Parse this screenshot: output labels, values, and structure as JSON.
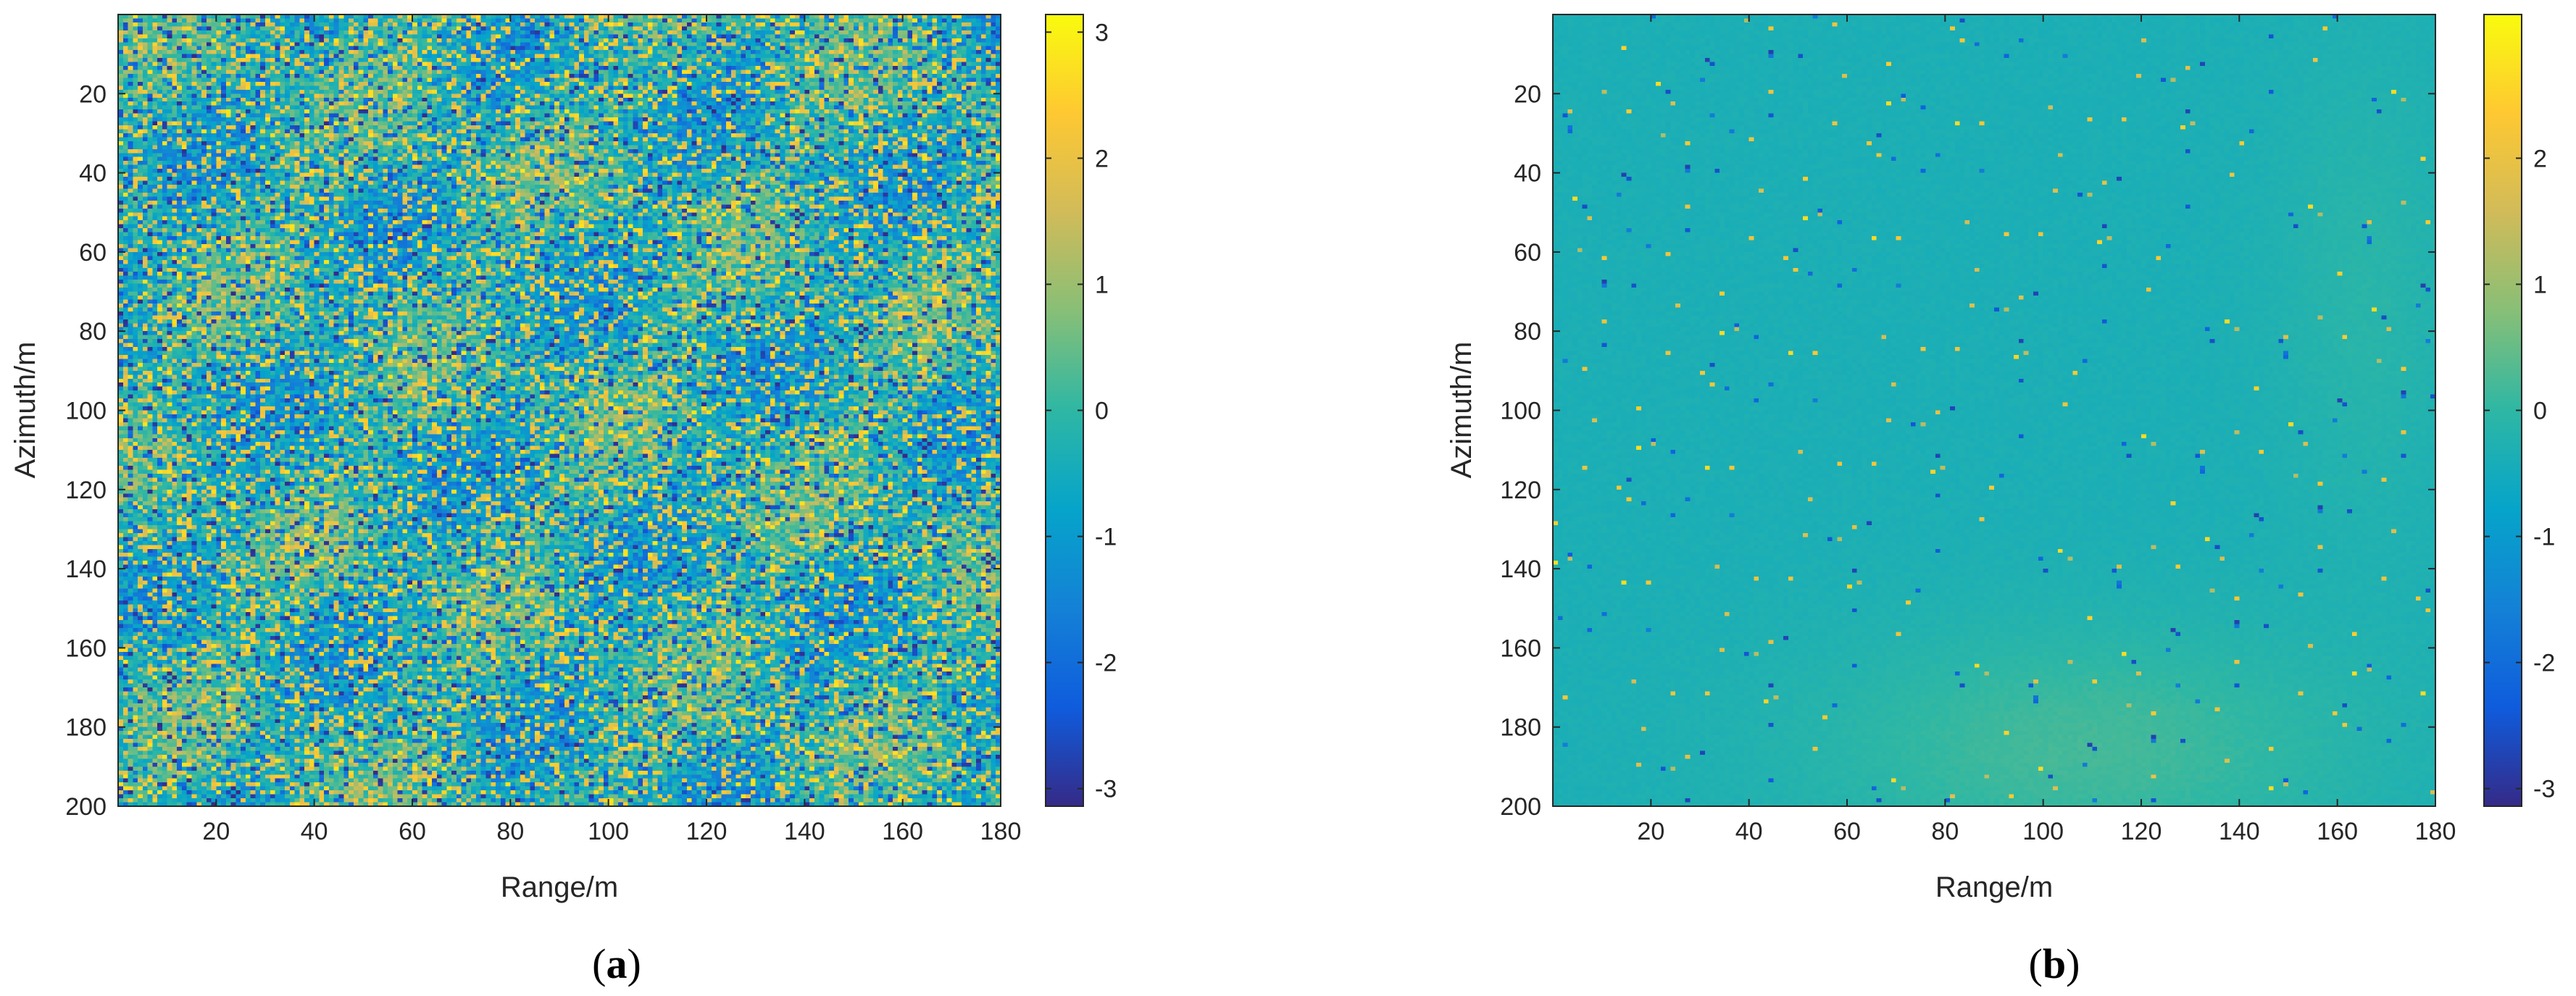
{
  "chart_data": [
    {
      "type": "heatmap",
      "panel_label": "a",
      "xlabel": "Range/m",
      "ylabel": "Azimuth/m",
      "xlim": [
        0,
        180
      ],
      "ylim": [
        0,
        200
      ],
      "y_reversed": true,
      "xticks": [
        20,
        40,
        60,
        80,
        100,
        120,
        140,
        160,
        180
      ],
      "yticks": [
        20,
        40,
        60,
        80,
        100,
        120,
        140,
        160,
        180,
        200
      ],
      "colorbar": {
        "colormap": "parula",
        "clim": [
          -3.14,
          3.14
        ],
        "ticks": [
          3,
          2,
          1,
          0,
          -1,
          -2,
          -3
        ]
      },
      "grid": false,
      "pattern": "noisy",
      "value_range": [
        -3.14,
        3.14
      ]
    },
    {
      "type": "heatmap",
      "panel_label": "b",
      "xlabel": "Range/m",
      "ylabel": "Azimuth/m",
      "xlim": [
        0,
        180
      ],
      "ylim": [
        0,
        200
      ],
      "y_reversed": true,
      "xticks": [
        20,
        40,
        60,
        80,
        100,
        120,
        140,
        160,
        180
      ],
      "yticks": [
        20,
        40,
        60,
        80,
        100,
        120,
        140,
        160,
        180,
        200
      ],
      "colorbar": {
        "colormap": "parula",
        "clim": [
          -3.14,
          3.14
        ],
        "ticks": [
          2,
          1,
          0,
          -1,
          -2,
          -3
        ]
      },
      "grid": false,
      "pattern": "smooth",
      "background_value": -0.35,
      "value_range": [
        -3.14,
        3.14
      ]
    }
  ],
  "colors": {
    "axis": "#262626",
    "parula_stops": [
      "#352a87",
      "#0f5cdd",
      "#1481d6",
      "#06a4ca",
      "#2eb7a4",
      "#87bf77",
      "#d1bb59",
      "#fec832",
      "#f9fb0e"
    ]
  }
}
